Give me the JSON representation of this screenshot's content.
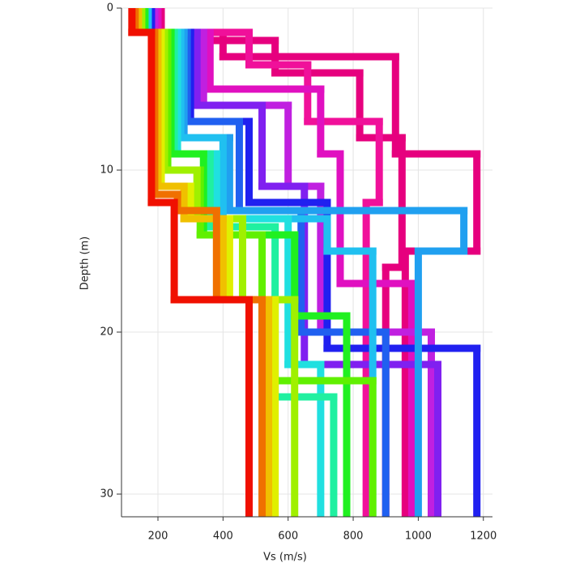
{
  "chart_data": {
    "type": "step-profile",
    "x_label": "Vs (m/s)",
    "y_label": "Depth (m)",
    "xlim": [
      88,
      1228
    ],
    "ylim": [
      0,
      31.4
    ],
    "y_reversed": true,
    "xticks": [
      200,
      400,
      600,
      800,
      1000,
      1200
    ],
    "yticks": [
      0,
      10,
      20,
      30
    ],
    "grid": true,
    "series": [
      {
        "color": "#e6007e",
        "depths": [
          0,
          1.5,
          3,
          9,
          15
        ],
        "values": [
          200,
          400,
          930,
          1180,
          960
        ]
      },
      {
        "color": "#e6007e",
        "depths": [
          0,
          2,
          4,
          8,
          16
        ],
        "values": [
          210,
          560,
          820,
          950,
          900
        ]
      },
      {
        "color": "#f0109a",
        "depths": [
          0,
          1.5,
          3.5,
          7,
          12
        ],
        "values": [
          190,
          480,
          660,
          880,
          840
        ]
      },
      {
        "color": "#e010c0",
        "depths": [
          0,
          1.5,
          5,
          9,
          17
        ],
        "values": [
          200,
          360,
          700,
          760,
          980
        ]
      },
      {
        "color": "#c020e0",
        "depths": [
          0,
          1.5,
          6,
          11,
          20
        ],
        "values": [
          190,
          340,
          600,
          700,
          1040
        ]
      },
      {
        "color": "#8020f0",
        "depths": [
          0,
          1.5,
          6,
          11,
          22
        ],
        "values": [
          180,
          320,
          520,
          650,
          1060
        ]
      },
      {
        "color": "#2020f0",
        "depths": [
          0,
          1.5,
          7,
          12,
          21
        ],
        "values": [
          180,
          300,
          480,
          720,
          1180
        ]
      },
      {
        "color": "#2060f0",
        "depths": [
          0,
          1.5,
          7,
          12.5,
          20
        ],
        "values": [
          170,
          290,
          450,
          640,
          900
        ]
      },
      {
        "color": "#20a0f0",
        "depths": [
          0,
          1.5,
          8,
          12.5,
          15
        ],
        "values": [
          170,
          280,
          420,
          1140,
          1000
        ]
      },
      {
        "color": "#20c0f0",
        "depths": [
          0,
          1.5,
          8,
          13,
          15
        ],
        "values": [
          170,
          270,
          400,
          720,
          860
        ]
      },
      {
        "color": "#20e0e0",
        "depths": [
          0,
          1.5,
          9,
          13,
          22
        ],
        "values": [
          160,
          260,
          380,
          600,
          700
        ]
      },
      {
        "color": "#20f0a0",
        "depths": [
          0,
          1.5,
          9,
          13.5,
          24
        ],
        "values": [
          160,
          250,
          360,
          560,
          740
        ]
      },
      {
        "color": "#20f020",
        "depths": [
          0,
          1.5,
          9,
          14,
          19
        ],
        "values": [
          160,
          240,
          340,
          620,
          780
        ]
      },
      {
        "color": "#60f000",
        "depths": [
          0,
          1.5,
          10,
          14,
          23
        ],
        "values": [
          150,
          230,
          330,
          520,
          860
        ]
      },
      {
        "color": "#a0f000",
        "depths": [
          0,
          1.5,
          10,
          13,
          18
        ],
        "values": [
          150,
          220,
          320,
          460,
          620
        ]
      },
      {
        "color": "#e0f000",
        "depths": [
          0,
          1.5,
          11,
          13,
          18
        ],
        "values": [
          140,
          210,
          300,
          420,
          560
        ]
      },
      {
        "color": "#f0c000",
        "depths": [
          0,
          1.5,
          11,
          13,
          18
        ],
        "values": [
          140,
          200,
          280,
          400,
          540
        ]
      },
      {
        "color": "#f07000",
        "depths": [
          0,
          1.5,
          11.5,
          12.5,
          18
        ],
        "values": [
          130,
          190,
          260,
          380,
          520
        ]
      },
      {
        "color": "#f01000",
        "depths": [
          0,
          1.5,
          12,
          18
        ],
        "values": [
          120,
          180,
          250,
          480
        ]
      }
    ]
  }
}
